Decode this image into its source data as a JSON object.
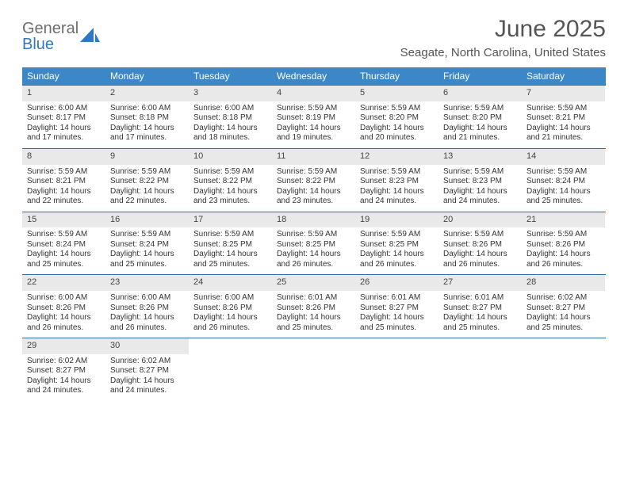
{
  "brand": {
    "top": "General",
    "bottom": "Blue"
  },
  "title": "June 2025",
  "subtitle": "Seagate, North Carolina, United States",
  "colors": {
    "header_bg": "#3b87c8",
    "header_text": "#ffffff",
    "week_divider": "#2d6ca8",
    "daynum_bg": "#e9e9e9",
    "title_color": "#555555",
    "logo_gray": "#6d6d6d",
    "logo_blue": "#2f78c2",
    "text": "#333333",
    "page_bg": "#ffffff"
  },
  "day_names": [
    "Sunday",
    "Monday",
    "Tuesday",
    "Wednesday",
    "Thursday",
    "Friday",
    "Saturday"
  ],
  "weeks": [
    [
      {
        "n": "1",
        "sr": "6:00 AM",
        "ss": "8:17 PM",
        "dl": "14 hours and 17 minutes."
      },
      {
        "n": "2",
        "sr": "6:00 AM",
        "ss": "8:18 PM",
        "dl": "14 hours and 17 minutes."
      },
      {
        "n": "3",
        "sr": "6:00 AM",
        "ss": "8:18 PM",
        "dl": "14 hours and 18 minutes."
      },
      {
        "n": "4",
        "sr": "5:59 AM",
        "ss": "8:19 PM",
        "dl": "14 hours and 19 minutes."
      },
      {
        "n": "5",
        "sr": "5:59 AM",
        "ss": "8:20 PM",
        "dl": "14 hours and 20 minutes."
      },
      {
        "n": "6",
        "sr": "5:59 AM",
        "ss": "8:20 PM",
        "dl": "14 hours and 21 minutes."
      },
      {
        "n": "7",
        "sr": "5:59 AM",
        "ss": "8:21 PM",
        "dl": "14 hours and 21 minutes."
      }
    ],
    [
      {
        "n": "8",
        "sr": "5:59 AM",
        "ss": "8:21 PM",
        "dl": "14 hours and 22 minutes."
      },
      {
        "n": "9",
        "sr": "5:59 AM",
        "ss": "8:22 PM",
        "dl": "14 hours and 22 minutes."
      },
      {
        "n": "10",
        "sr": "5:59 AM",
        "ss": "8:22 PM",
        "dl": "14 hours and 23 minutes."
      },
      {
        "n": "11",
        "sr": "5:59 AM",
        "ss": "8:22 PM",
        "dl": "14 hours and 23 minutes."
      },
      {
        "n": "12",
        "sr": "5:59 AM",
        "ss": "8:23 PM",
        "dl": "14 hours and 24 minutes."
      },
      {
        "n": "13",
        "sr": "5:59 AM",
        "ss": "8:23 PM",
        "dl": "14 hours and 24 minutes."
      },
      {
        "n": "14",
        "sr": "5:59 AM",
        "ss": "8:24 PM",
        "dl": "14 hours and 25 minutes."
      }
    ],
    [
      {
        "n": "15",
        "sr": "5:59 AM",
        "ss": "8:24 PM",
        "dl": "14 hours and 25 minutes."
      },
      {
        "n": "16",
        "sr": "5:59 AM",
        "ss": "8:24 PM",
        "dl": "14 hours and 25 minutes."
      },
      {
        "n": "17",
        "sr": "5:59 AM",
        "ss": "8:25 PM",
        "dl": "14 hours and 25 minutes."
      },
      {
        "n": "18",
        "sr": "5:59 AM",
        "ss": "8:25 PM",
        "dl": "14 hours and 26 minutes."
      },
      {
        "n": "19",
        "sr": "5:59 AM",
        "ss": "8:25 PM",
        "dl": "14 hours and 26 minutes."
      },
      {
        "n": "20",
        "sr": "5:59 AM",
        "ss": "8:26 PM",
        "dl": "14 hours and 26 minutes."
      },
      {
        "n": "21",
        "sr": "5:59 AM",
        "ss": "8:26 PM",
        "dl": "14 hours and 26 minutes."
      }
    ],
    [
      {
        "n": "22",
        "sr": "6:00 AM",
        "ss": "8:26 PM",
        "dl": "14 hours and 26 minutes."
      },
      {
        "n": "23",
        "sr": "6:00 AM",
        "ss": "8:26 PM",
        "dl": "14 hours and 26 minutes."
      },
      {
        "n": "24",
        "sr": "6:00 AM",
        "ss": "8:26 PM",
        "dl": "14 hours and 26 minutes."
      },
      {
        "n": "25",
        "sr": "6:01 AM",
        "ss": "8:26 PM",
        "dl": "14 hours and 25 minutes."
      },
      {
        "n": "26",
        "sr": "6:01 AM",
        "ss": "8:27 PM",
        "dl": "14 hours and 25 minutes."
      },
      {
        "n": "27",
        "sr": "6:01 AM",
        "ss": "8:27 PM",
        "dl": "14 hours and 25 minutes."
      },
      {
        "n": "28",
        "sr": "6:02 AM",
        "ss": "8:27 PM",
        "dl": "14 hours and 25 minutes."
      }
    ],
    [
      {
        "n": "29",
        "sr": "6:02 AM",
        "ss": "8:27 PM",
        "dl": "14 hours and 24 minutes."
      },
      {
        "n": "30",
        "sr": "6:02 AM",
        "ss": "8:27 PM",
        "dl": "14 hours and 24 minutes."
      },
      null,
      null,
      null,
      null,
      null
    ]
  ],
  "labels": {
    "sunrise": "Sunrise: ",
    "sunset": "Sunset: ",
    "daylight": "Daylight: "
  }
}
